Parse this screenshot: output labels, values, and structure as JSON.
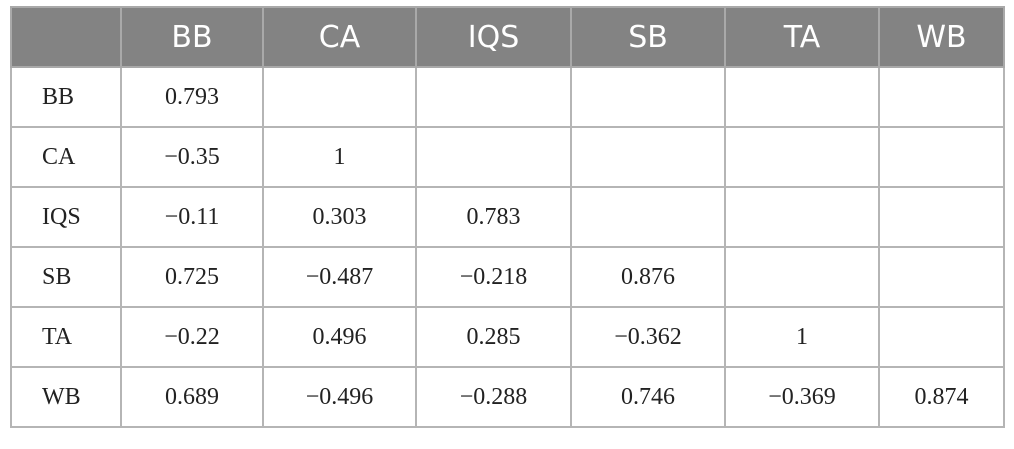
{
  "table": {
    "header": [
      "BB",
      "CA",
      "IQS",
      "SB",
      "TA",
      "WB"
    ],
    "rows": [
      [
        "BB",
        "0.793"
      ],
      [
        "CA",
        "−0.35",
        "1"
      ],
      [
        "IQS",
        "−0.11",
        "0.303",
        "0.783"
      ],
      [
        "SB",
        "0.725",
        "−0.487",
        "−0.218",
        "0.876"
      ],
      [
        "TA",
        "−0.22",
        "0.496",
        "0.285",
        "−0.362",
        "1"
      ],
      [
        "WB",
        "0.689",
        "−0.496",
        "−0.288",
        "0.746",
        "−0.369",
        "0.874"
      ]
    ]
  }
}
